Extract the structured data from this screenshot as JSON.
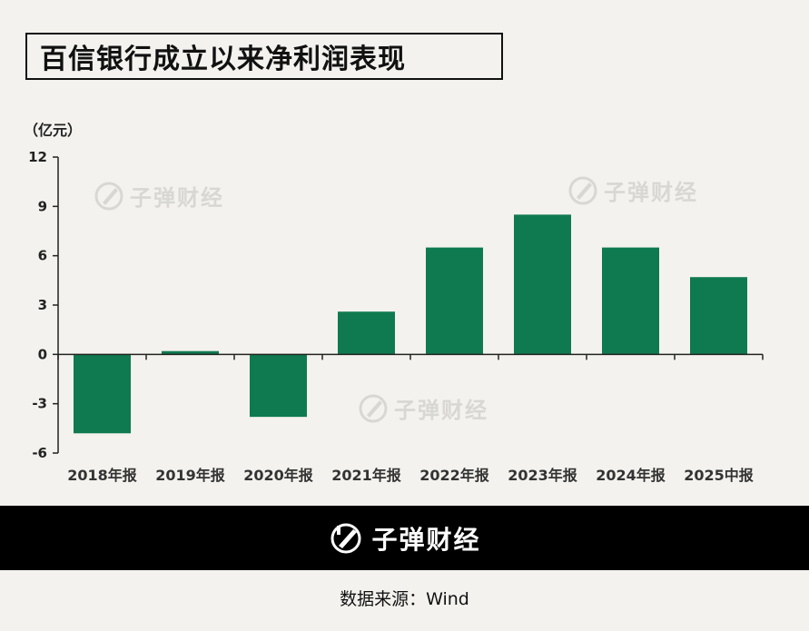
{
  "title": "百信银行成立以来净利润表现",
  "unit_label": "（亿元）",
  "watermark_text": "子弹财经",
  "footer": {
    "brand": "子弹财经"
  },
  "source": "数据来源：Wind",
  "colors": {
    "bar": "#0f7a4f",
    "background": "#f3f2ee",
    "footer": "#000000"
  },
  "chart_data": {
    "type": "bar",
    "categories": [
      "2018年报",
      "2019年报",
      "2020年报",
      "2021年报",
      "2022年报",
      "2023年报",
      "2024年报",
      "2025中报"
    ],
    "values": [
      -4.8,
      0.2,
      -3.8,
      2.6,
      6.5,
      8.5,
      6.5,
      4.7
    ],
    "yticks": [
      12,
      9,
      6,
      3,
      0,
      -3,
      -6
    ],
    "ylim": [
      -6,
      12
    ],
    "title": "百信银行成立以来净利润表现",
    "ylabel": "（亿元）",
    "xlabel": "",
    "grid": false
  }
}
